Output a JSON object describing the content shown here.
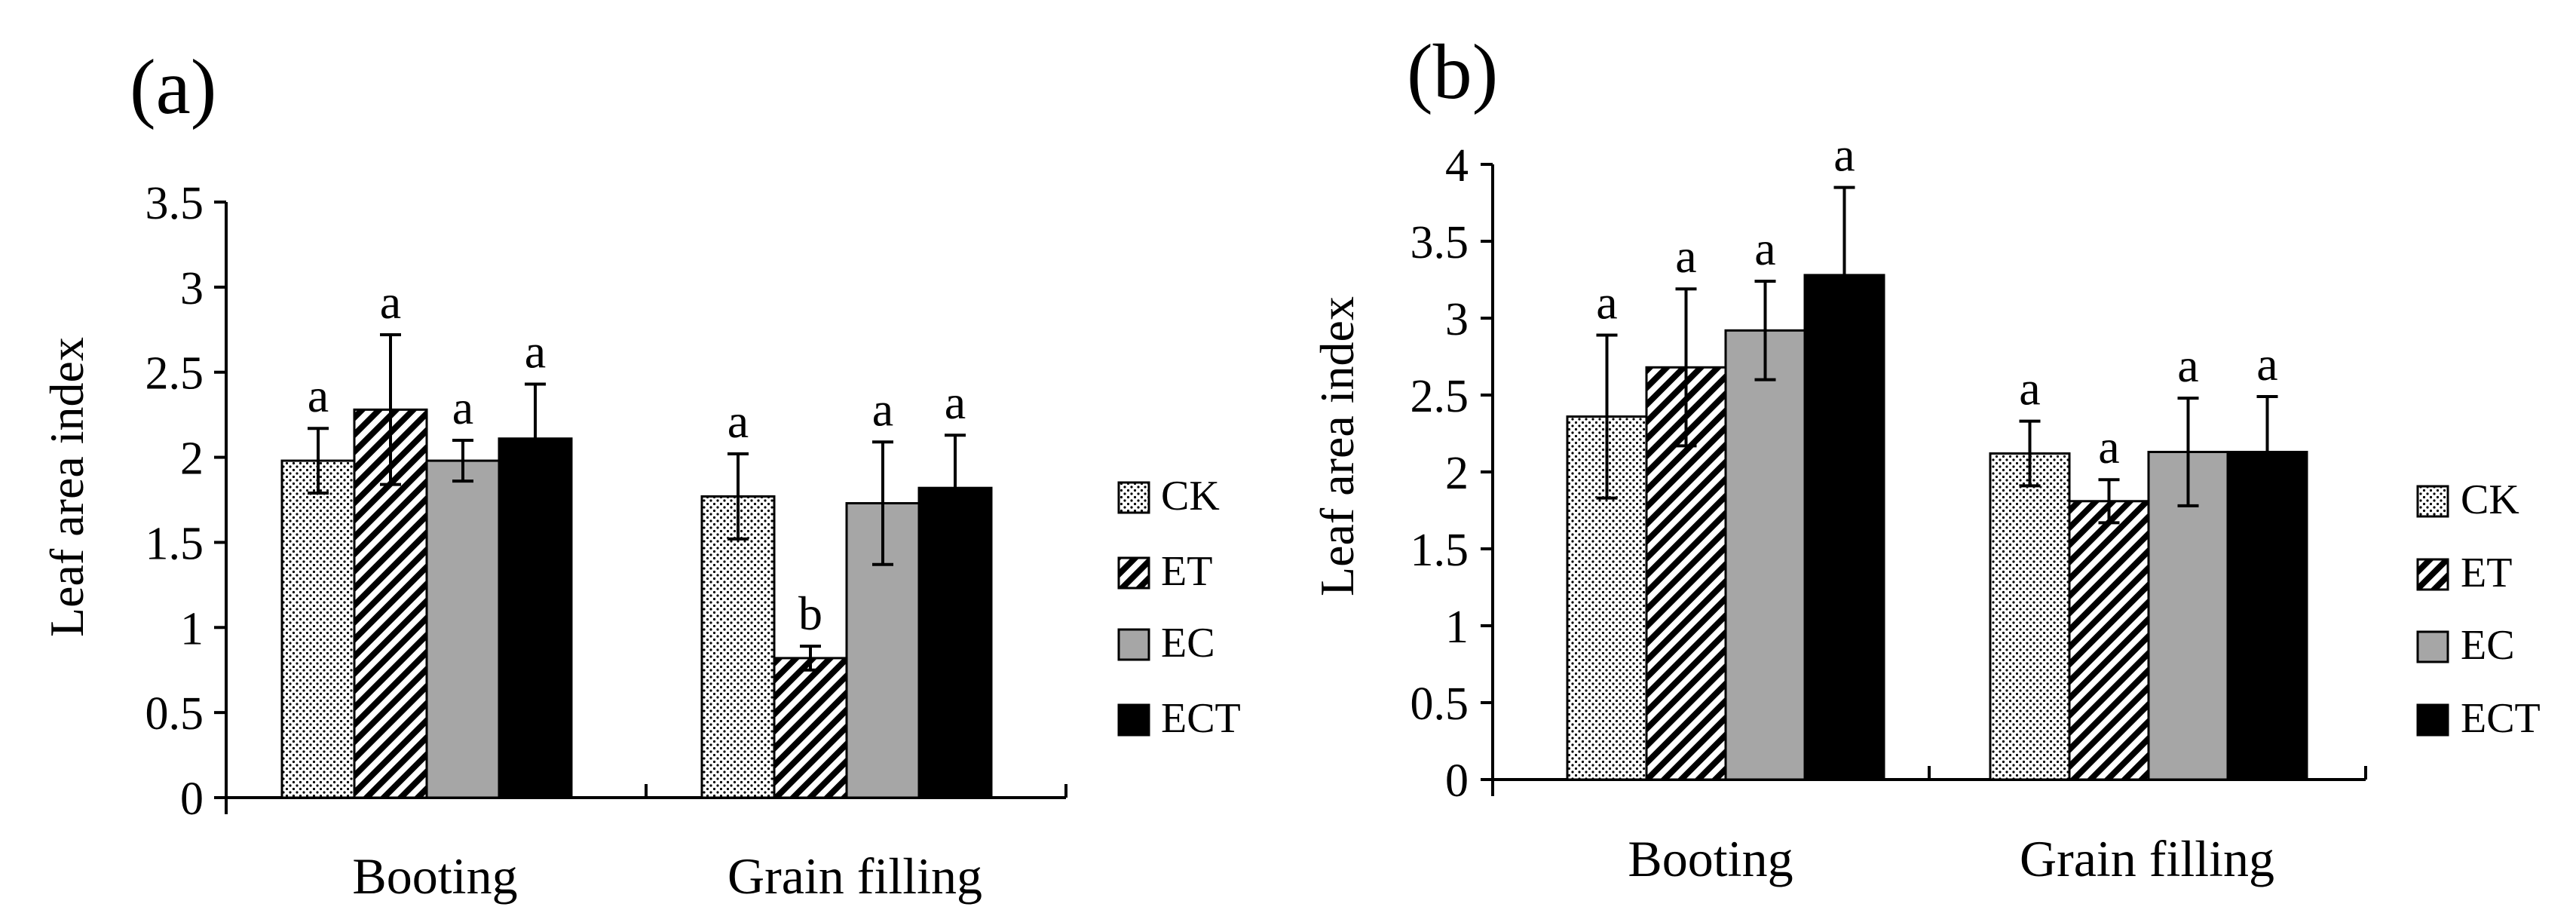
{
  "colors": {
    "CK": "#ffffff",
    "ET": "#ffffff",
    "EC": "#a6a6a6",
    "ECT": "#000000",
    "axis": "#000000"
  },
  "legend_labels": [
    "CK",
    "ET",
    "EC",
    "ECT"
  ],
  "chart_data": [
    {
      "panel_label": "(a)",
      "type": "bar",
      "ylabel": "Leaf area index",
      "xlabel": "",
      "ylim": [
        0,
        3.5
      ],
      "yticks": [
        "0",
        "0.5",
        "1",
        "1.5",
        "2",
        "2.5",
        "3",
        "3.5"
      ],
      "categories": [
        "Booting",
        "Grain filling"
      ],
      "series": [
        {
          "name": "CK",
          "values": [
            1.98,
            1.77
          ],
          "errors": [
            0.19,
            0.25
          ],
          "letters": [
            "a",
            "a"
          ]
        },
        {
          "name": "ET",
          "values": [
            2.28,
            0.82
          ],
          "errors": [
            0.44,
            0.07
          ],
          "letters": [
            "a",
            "b"
          ]
        },
        {
          "name": "EC",
          "values": [
            1.98,
            1.73
          ],
          "errors": [
            0.12,
            0.36
          ],
          "letters": [
            "a",
            "a"
          ]
        },
        {
          "name": "ECT",
          "values": [
            2.11,
            1.82
          ],
          "errors": [
            0.32,
            0.31
          ],
          "letters": [
            "a",
            "a"
          ]
        }
      ]
    },
    {
      "panel_label": "(b)",
      "type": "bar",
      "ylabel": "Leaf area index",
      "xlabel": "",
      "ylim": [
        0,
        4
      ],
      "yticks": [
        "0",
        "0.5",
        "1",
        "1.5",
        "2",
        "2.5",
        "3",
        "3.5",
        "4"
      ],
      "categories": [
        "Booting",
        "Grain filling"
      ],
      "series": [
        {
          "name": "CK",
          "values": [
            2.36,
            2.12
          ],
          "errors": [
            0.53,
            0.21
          ],
          "letters": [
            "a",
            "a"
          ]
        },
        {
          "name": "ET",
          "values": [
            2.68,
            1.81
          ],
          "errors": [
            0.51,
            0.14
          ],
          "letters": [
            "a",
            "a"
          ]
        },
        {
          "name": "EC",
          "values": [
            2.92,
            2.13
          ],
          "errors": [
            0.32,
            0.35
          ],
          "letters": [
            "a",
            "a"
          ]
        },
        {
          "name": "ECT",
          "values": [
            3.28,
            2.13
          ],
          "errors": [
            0.57,
            0.36
          ],
          "letters": [
            "a",
            "a"
          ]
        }
      ]
    }
  ]
}
